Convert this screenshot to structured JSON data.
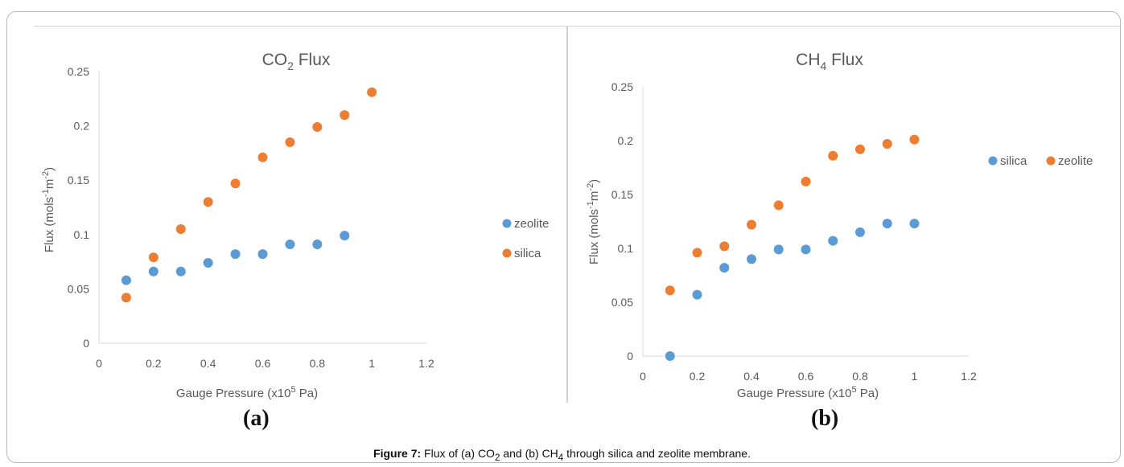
{
  "colors": {
    "blue": "#5b9bd5",
    "orange": "#ed7d31",
    "text": "#595959",
    "axis": "#d9d9d9"
  },
  "chart_data": [
    {
      "type": "scatter",
      "title": "CO2 Flux",
      "title_main": "CO",
      "title_sub": "2",
      "title_tail": " Flux",
      "xlabel": "Gauge Pressure (x10",
      "xlabel_sup": "5",
      "xlabel_tail": " Pa)",
      "ylabel": "Flux (mols",
      "ylabel_sup1": "-1",
      "ylabel_mid": "m",
      "ylabel_sup2": "-2",
      "ylabel_tail": ")",
      "xlim": [
        0,
        1.2
      ],
      "ylim": [
        0,
        0.25
      ],
      "x_ticks": [
        "0",
        "0.2",
        "0.4",
        "0.6",
        "0.8",
        "1",
        "1.2"
      ],
      "y_ticks": [
        "0",
        "0.05",
        "0.1",
        "0.15",
        "0.2",
        "0.25"
      ],
      "legend_position": "right",
      "series": [
        {
          "name": "zeolite",
          "color": "#5b9bd5",
          "x": [
            0.1,
            0.2,
            0.3,
            0.4,
            0.5,
            0.6,
            0.7,
            0.8,
            0.9
          ],
          "y": [
            0.058,
            0.066,
            0.066,
            0.074,
            0.082,
            0.082,
            0.091,
            0.091,
            0.099
          ]
        },
        {
          "name": "silica",
          "color": "#ed7d31",
          "x": [
            0.1,
            0.2,
            0.3,
            0.4,
            0.5,
            0.6,
            0.7,
            0.8,
            0.9,
            1.0
          ],
          "y": [
            0.042,
            0.079,
            0.105,
            0.13,
            0.147,
            0.171,
            0.185,
            0.199,
            0.21,
            0.231
          ]
        }
      ]
    },
    {
      "type": "scatter",
      "title": "CH4 Flux",
      "title_main": "CH",
      "title_sub": "4",
      "title_tail": " Flux",
      "xlabel": "Gauge Pressure (x10",
      "xlabel_sup": "5",
      "xlabel_tail": " Pa)",
      "ylabel": "Flux (mols",
      "ylabel_sup1": "-1",
      "ylabel_mid": "m",
      "ylabel_sup2": "-2",
      "ylabel_tail": ")",
      "xlim": [
        0,
        1.2
      ],
      "ylim": [
        0,
        0.25
      ],
      "x_ticks": [
        "0",
        "0.2",
        "0.4",
        "0.6",
        "0.8",
        "1",
        "1.2"
      ],
      "y_ticks": [
        "0",
        "0.05",
        "0.1",
        "0.15",
        "0.2",
        "0.25"
      ],
      "legend_position": "top-right",
      "series": [
        {
          "name": "silica",
          "color": "#5b9bd5",
          "x": [
            0.1,
            0.2,
            0.3,
            0.4,
            0.5,
            0.6,
            0.7,
            0.8,
            0.9,
            1.0
          ],
          "y": [
            0.0,
            0.057,
            0.082,
            0.09,
            0.099,
            0.099,
            0.107,
            0.115,
            0.123,
            0.123
          ]
        },
        {
          "name": "zeolite",
          "color": "#ed7d31",
          "x": [
            0.1,
            0.2,
            0.3,
            0.4,
            0.5,
            0.6,
            0.7,
            0.8,
            0.9,
            1.0
          ],
          "y": [
            0.061,
            0.096,
            0.102,
            0.122,
            0.14,
            0.162,
            0.186,
            0.192,
            0.197,
            0.201
          ]
        }
      ]
    }
  ],
  "panel_labels": {
    "a": "(a)",
    "b": "(b)"
  },
  "caption": {
    "label": "Figure 7:",
    "p1": " Flux of (a) CO",
    "s1": "2",
    "p2": " and (b) CH",
    "s2": "4",
    "p3": " through silica and zeolite membrane."
  }
}
